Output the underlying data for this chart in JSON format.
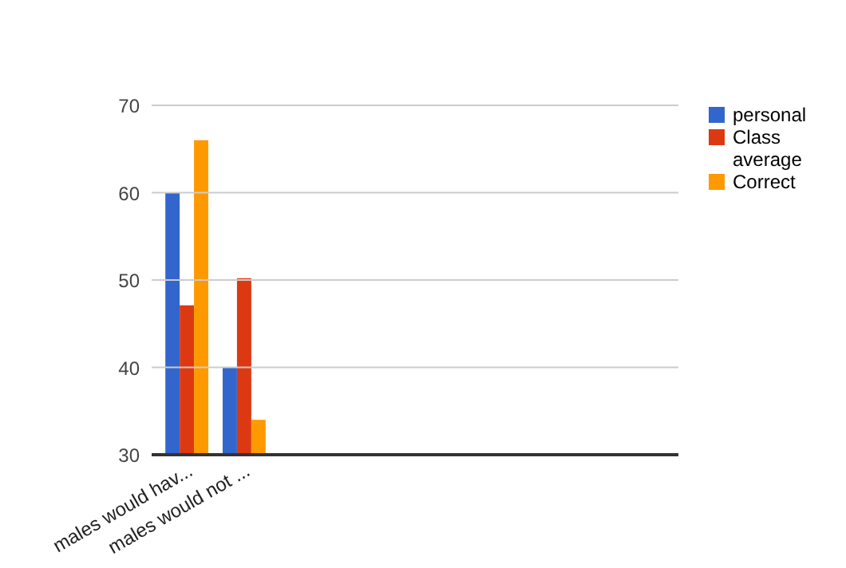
{
  "chart_data": {
    "type": "bar",
    "categories": [
      "males would hav...",
      "males would not ..."
    ],
    "series": [
      {
        "name": "personal",
        "color": "#3366cc",
        "values": [
          60,
          40
        ]
      },
      {
        "name": "Class average",
        "color": "#dc3912",
        "values": [
          47.1,
          50.2
        ]
      },
      {
        "name": "Correct",
        "color": "#ff9900",
        "values": [
          66,
          34
        ]
      }
    ],
    "ylim": [
      30,
      70
    ],
    "yticks": [
      30,
      40,
      50,
      60,
      70
    ],
    "grid": "y",
    "legend": "right"
  }
}
